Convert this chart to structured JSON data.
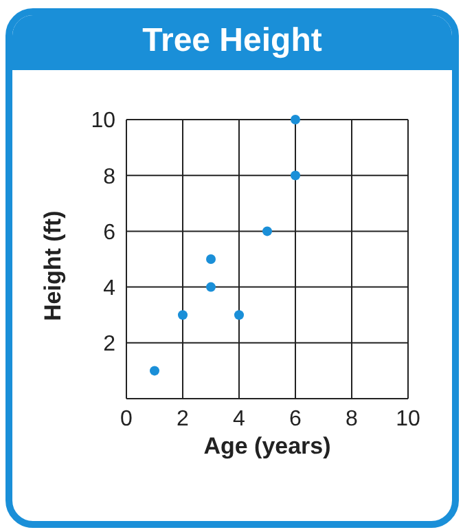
{
  "chart_data": {
    "type": "scatter",
    "title": "Tree Height",
    "xlabel": "Age (years)",
    "ylabel": "Height (ft)",
    "x": [
      1,
      2,
      3,
      3,
      4,
      5,
      6,
      6
    ],
    "values": [
      1,
      3,
      4,
      5,
      3,
      6,
      8,
      10
    ],
    "color": "#1a8fd8",
    "xlim": [
      0,
      10
    ],
    "xticks": [
      0,
      2,
      4,
      6,
      8,
      10
    ],
    "ylim": [
      0,
      10
    ],
    "yticks": [
      {
        "value": 0,
        "label": null
      },
      2,
      4,
      6,
      8,
      10
    ],
    "grid": true,
    "marker": "circle"
  }
}
